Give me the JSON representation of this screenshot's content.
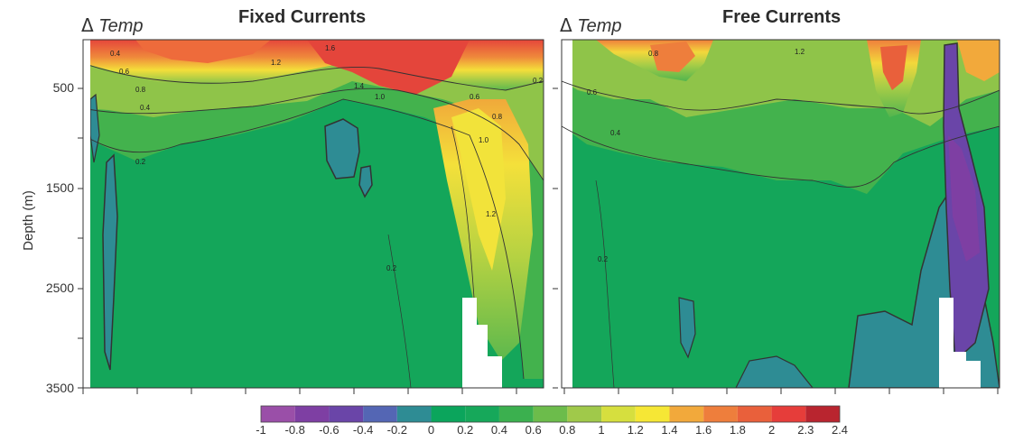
{
  "chart_data": {
    "type": "heatmap",
    "ylabel": "Depth (m)",
    "yticks": [
      "500",
      "1500",
      "2500",
      "3500"
    ],
    "ylim": [
      0,
      3500
    ],
    "y_inverted": true,
    "panels": [
      {
        "title": "Fixed Currents",
        "variable_label": "Temp",
        "variable_symbol": "Δ",
        "contour_labels": [
          "0.4",
          "0.6",
          "0.8",
          "1.0",
          "1.2",
          "1.4",
          "1.6",
          "0.2",
          "0.4",
          "0.6",
          "0.8",
          "1.0",
          "1.2",
          "0.2",
          "0.2"
        ],
        "regions": [
          {
            "depth_range": [
              0,
              150
            ],
            "dTemp": 2.0
          },
          {
            "depth_range": [
              150,
              400
            ],
            "dTemp": 1.2
          },
          {
            "depth_range": [
              400,
              900
            ],
            "dTemp": 0.6
          },
          {
            "depth_range": [
              900,
              3500
            ],
            "dTemp": 0.2
          },
          {
            "name": "cold pocket",
            "depth_range": [
              850,
              1400
            ],
            "dTemp": -0.2
          },
          {
            "name": "deep warm plume",
            "depth_range": [
              300,
              2600
            ],
            "dTemp": 1.2
          }
        ]
      },
      {
        "title": "Free Currents",
        "variable_label": "Temp",
        "variable_symbol": "Δ",
        "contour_labels": [
          "0.8",
          "1.2",
          "0.6",
          "0.4",
          "0.2"
        ],
        "regions": [
          {
            "depth_range": [
              0,
              150
            ],
            "dTemp": 1.4
          },
          {
            "depth_range": [
              150,
              600
            ],
            "dTemp": 0.8
          },
          {
            "depth_range": [
              600,
              1500
            ],
            "dTemp": 0.4
          },
          {
            "depth_range": [
              1500,
              3500
            ],
            "dTemp": 0.2
          },
          {
            "name": "cold bottom water",
            "depth_range": [
              2300,
              3500
            ],
            "dTemp": -0.2
          },
          {
            "name": "cooling column",
            "depth_range": [
              50,
              3300
            ],
            "dTemp": -0.6
          }
        ]
      }
    ],
    "colorbar": {
      "ticks": [
        "-1",
        "-0.8",
        "-0.6",
        "-0.4",
        "-0.2",
        "0",
        "0.2",
        "0.4",
        "0.6",
        "0.8",
        "1",
        "1.2",
        "1.4",
        "1.6",
        "1.8",
        "2",
        "2.3",
        "2.4"
      ],
      "colors": [
        "#9a4fa8",
        "#7e3fa3",
        "#6a45a8",
        "#5466b4",
        "#2e8c94",
        "#0ba55c",
        "#16a85a",
        "#3bb04f",
        "#6cbc4b",
        "#a0c94a",
        "#d6df3e",
        "#f6e735",
        "#f2a93b",
        "#ee7e3c",
        "#e9603b",
        "#e63d3a",
        "#b9252f"
      ]
    }
  }
}
